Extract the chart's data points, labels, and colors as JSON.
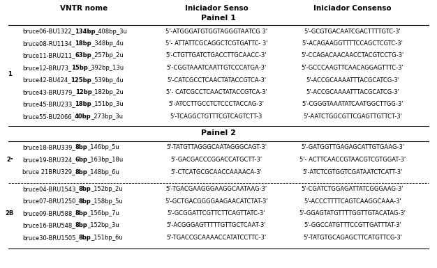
{
  "col_headers": [
    "VNTR nome",
    "Iniciador Senso",
    "Iniciador Consenso"
  ],
  "panel1_label": "Painel 1",
  "panel2_label": "Painel 2",
  "panel1_rows": [
    [
      "bruce06-BU1322_**134bp**_408bp_3u",
      "5'-ATGGGATGTGGTAGGGTAATCG 3'",
      "5'-GCGTGACAATCGACTTTTGTC-3'"
    ],
    [
      "bruce08-RU1134_**18bp**_348bp_4u",
      "5'- ATTATTCGCAGGCTCGTGATTC- 3'",
      "5'-ACAGAAGGTTTTCCAGCTCGTC-3'"
    ],
    [
      "bruce11-BRU211_**63bp**_257bp_2u",
      "5'-CTGTTGATCTGACCTTGCAACC-3'",
      "5'-CCAGACAACAACCTACGTCCTG-3'"
    ],
    [
      "bruce12-BRU73_**15bp**_392bp_13u",
      "5'-CGGTAAATCAATTGTCCCATGA-3'",
      "5'-GCCCAAGTTCAACAGGAGTTTC-3'"
    ],
    [
      "bruce42-BU424_**125bp**_539bp_4u",
      "5'-CATCGCCTCAACTATACCGTCA-3'",
      "5'-ACCGCAAAATTTACGCATCG-3'"
    ],
    [
      "bruce43-BRU379_**12bp**_182bp_2u",
      "5'- CATCGCCTCAACTATACCGTCA-3'",
      "5'-ACCGCAAAATTTACGCATCG-3'"
    ],
    [
      "bruce45-BRU233_**18bp**_151bp_3u",
      "5'-ATCCTTGCCTCTCCCTACCAG-3'",
      "5'-CGGGTAAATATCAATGGCTTGG-3'"
    ],
    [
      "bruce55-BU2066_**40bp**_273bp_3u",
      "5'-TCAGGCTGTTTCGTCAGTCTT-3",
      "5'-AATCTGGCGTTCGAGTTGTTCT-3'"
    ]
  ],
  "panel1_side_label": "1",
  "panel2a_label": "2ᵃ",
  "panel2b_label": "2B",
  "panel2a_rows": [
    [
      "bruce18-BRU339_**8bp**_146bp_5u",
      "5'-TATGTTAGGGCAATAGGGCAGT-3'",
      "5'-GATGGTTGAGAGCATTGTGAAG-3'"
    ],
    [
      "bruce19-BRU324_**6bp**_163bp_18u",
      "5'-GACGACCCGGACCATGCTT-3'",
      "5'- ACTTCAACCGTAACGTCGTGGAT-3'"
    ],
    [
      "bruce 21BRU329_**8bp**_148bp_6u",
      "5'-CTCATGCGCAACCAAAACA-3'",
      "5'-ATCTCGTGGTCGATAATCTCATT-3'"
    ]
  ],
  "panel2b_rows": [
    [
      "bruce04-BRU1543_**8bp**_152bp_2u",
      "5'-TGACGAAGGGAAGGCAATAAG-3'",
      "5'-CGATCTGGAGATTATCGGGAAG-3'"
    ],
    [
      "bruce07-BRU1250_**8bp**_158bp_5u",
      "5'-GCTGACGGGGAAGAACATCTAT-3'",
      "5'-ACCCTTTTCAGTCAAGGCAAA-3'"
    ],
    [
      "bruce09-BRU588_**8bp**_156bp_7u",
      "5'-GCGGATTCGTTCTTCAGTTATC-3'",
      "5'-GGAGTATGTTTTGGTTGTACATAG-3'"
    ],
    [
      "bruce16-BRU548_**8bp**_152bp_3u",
      "5'-ACGGGAGTTTTTGTTGCTCAAT-3'",
      "5'-GGCCATGTTTCCGTTGATTTAT-3'"
    ],
    [
      "bruce30-BRU1505_**8bp**_151bp_6u",
      "5'-TGACCGCAAAACCATATCCTTC-3'",
      "5'-TATGTGCAGAGCTTCATGTTCG-3'"
    ]
  ],
  "bg_color": "#ffffff",
  "text_color": "#000000",
  "header_fontsize": 7.5,
  "cell_fontsize": 6.0,
  "panel_label_fontsize": 8.0
}
